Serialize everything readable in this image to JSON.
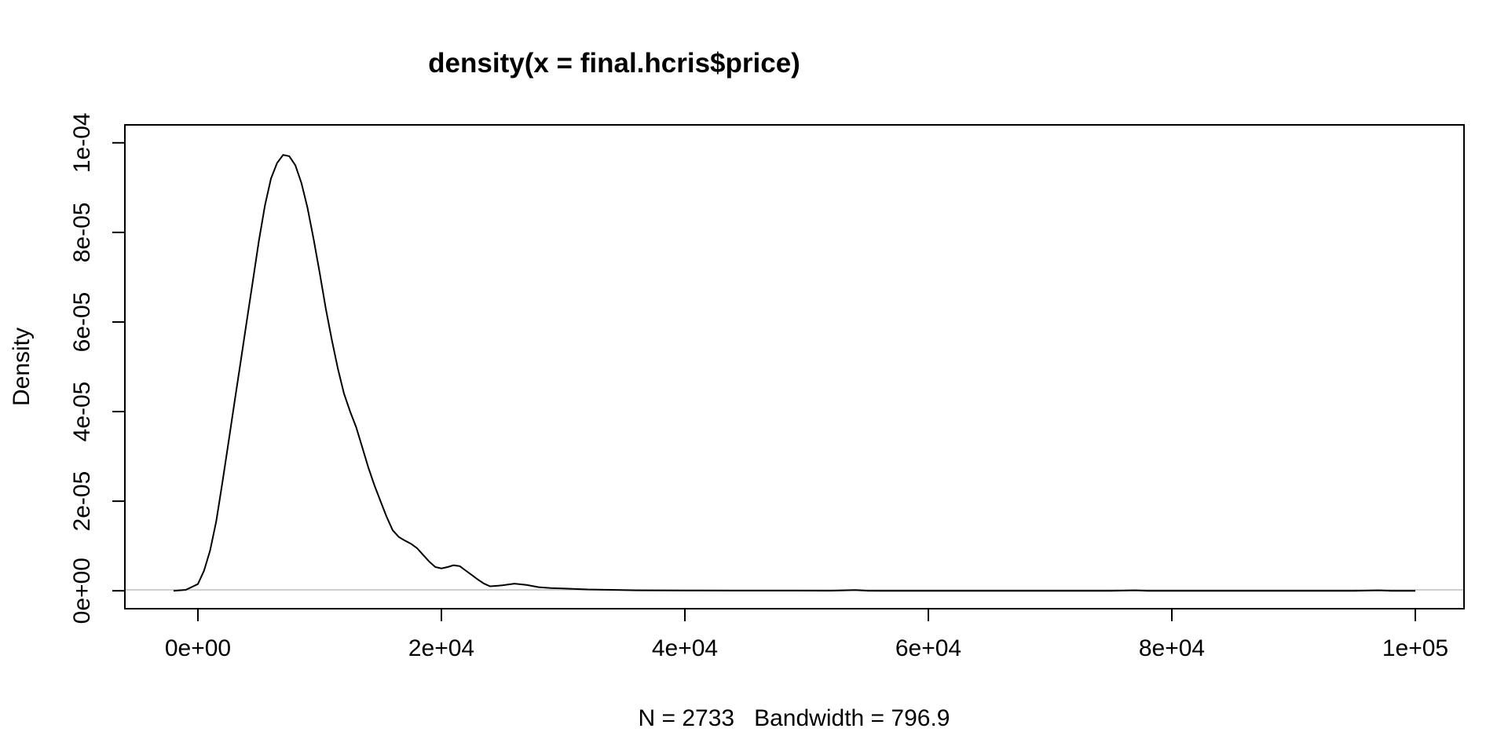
{
  "chart_data": {
    "type": "line",
    "title": "density(x = final.hcris$price)",
    "xlabel": "N = 2733   Bandwidth = 796.9",
    "ylabel": "Density",
    "xlim": [
      -6000,
      104000
    ],
    "ylim": [
      -4e-06,
      0.000104
    ],
    "x_ticks": [
      0,
      20000,
      40000,
      60000,
      80000,
      100000
    ],
    "x_tick_labels": [
      "0e+00",
      "2e+04",
      "4e+04",
      "6e+04",
      "8e+04",
      "1e+05"
    ],
    "y_ticks": [
      0,
      2e-05,
      4e-05,
      6e-05,
      8e-05,
      0.0001
    ],
    "y_tick_labels": [
      "0e+00",
      "2e-05",
      "4e-05",
      "6e-05",
      "8e-05",
      "1e-04"
    ],
    "zero_line": true,
    "grid": false,
    "series": [
      {
        "x": [
          -2000,
          -1000,
          0,
          500,
          1000,
          1500,
          2000,
          2500,
          3000,
          3500,
          4000,
          4500,
          5000,
          5500,
          6000,
          6500,
          7000,
          7500,
          8000,
          8500,
          9000,
          9500,
          10000,
          10500,
          11000,
          11500,
          12000,
          12500,
          13000,
          13500,
          14000,
          14500,
          15000,
          15500,
          16000,
          16500,
          17000,
          17500,
          18000,
          18500,
          19000,
          19500,
          20000,
          20500,
          21000,
          21500,
          22000,
          22500,
          23000,
          23500,
          24000,
          25000,
          26000,
          27000,
          28000,
          29000,
          30000,
          31000,
          32000,
          34000,
          36000,
          38000,
          40000,
          44000,
          48000,
          52000,
          54000,
          55000,
          56000,
          60000,
          65000,
          70000,
          75000,
          77000,
          78000,
          79000,
          85000,
          90000,
          95000,
          97000,
          98000,
          99000,
          100000
        ],
        "y": [
          0,
          2e-07,
          1.5e-06,
          4.5e-06,
          9e-06,
          1.55e-05,
          2.4e-05,
          3.3e-05,
          4.2e-05,
          5.1e-05,
          6e-05,
          6.9e-05,
          7.8e-05,
          8.6e-05,
          9.2e-05,
          9.55e-05,
          9.73e-05,
          9.7e-05,
          9.5e-05,
          9.1e-05,
          8.55e-05,
          7.85e-05,
          7.1e-05,
          6.3e-05,
          5.6e-05,
          4.95e-05,
          4.4e-05,
          4e-05,
          3.65e-05,
          3.2e-05,
          2.75e-05,
          2.35e-05,
          2e-05,
          1.65e-05,
          1.35e-05,
          1.2e-05,
          1.12e-05,
          1.05e-05,
          9.5e-06,
          8e-06,
          6.5e-06,
          5.3e-06,
          5e-06,
          5.3e-06,
          5.7e-06,
          5.5e-06,
          4.5e-06,
          3.5e-06,
          2.5e-06,
          1.6e-06,
          1e-06,
          1.2e-06,
          1.6e-06,
          1.3e-06,
          8e-07,
          6e-07,
          5e-07,
          4e-07,
          3e-07,
          2e-07,
          1e-07,
          6e-08,
          5e-08,
          4e-08,
          3e-08,
          1e-08,
          1.5e-07,
          1e-08,
          0,
          0,
          0,
          0,
          0,
          1e-07,
          0,
          0,
          0,
          0,
          0,
          1e-07,
          0,
          0,
          0
        ]
      }
    ]
  }
}
